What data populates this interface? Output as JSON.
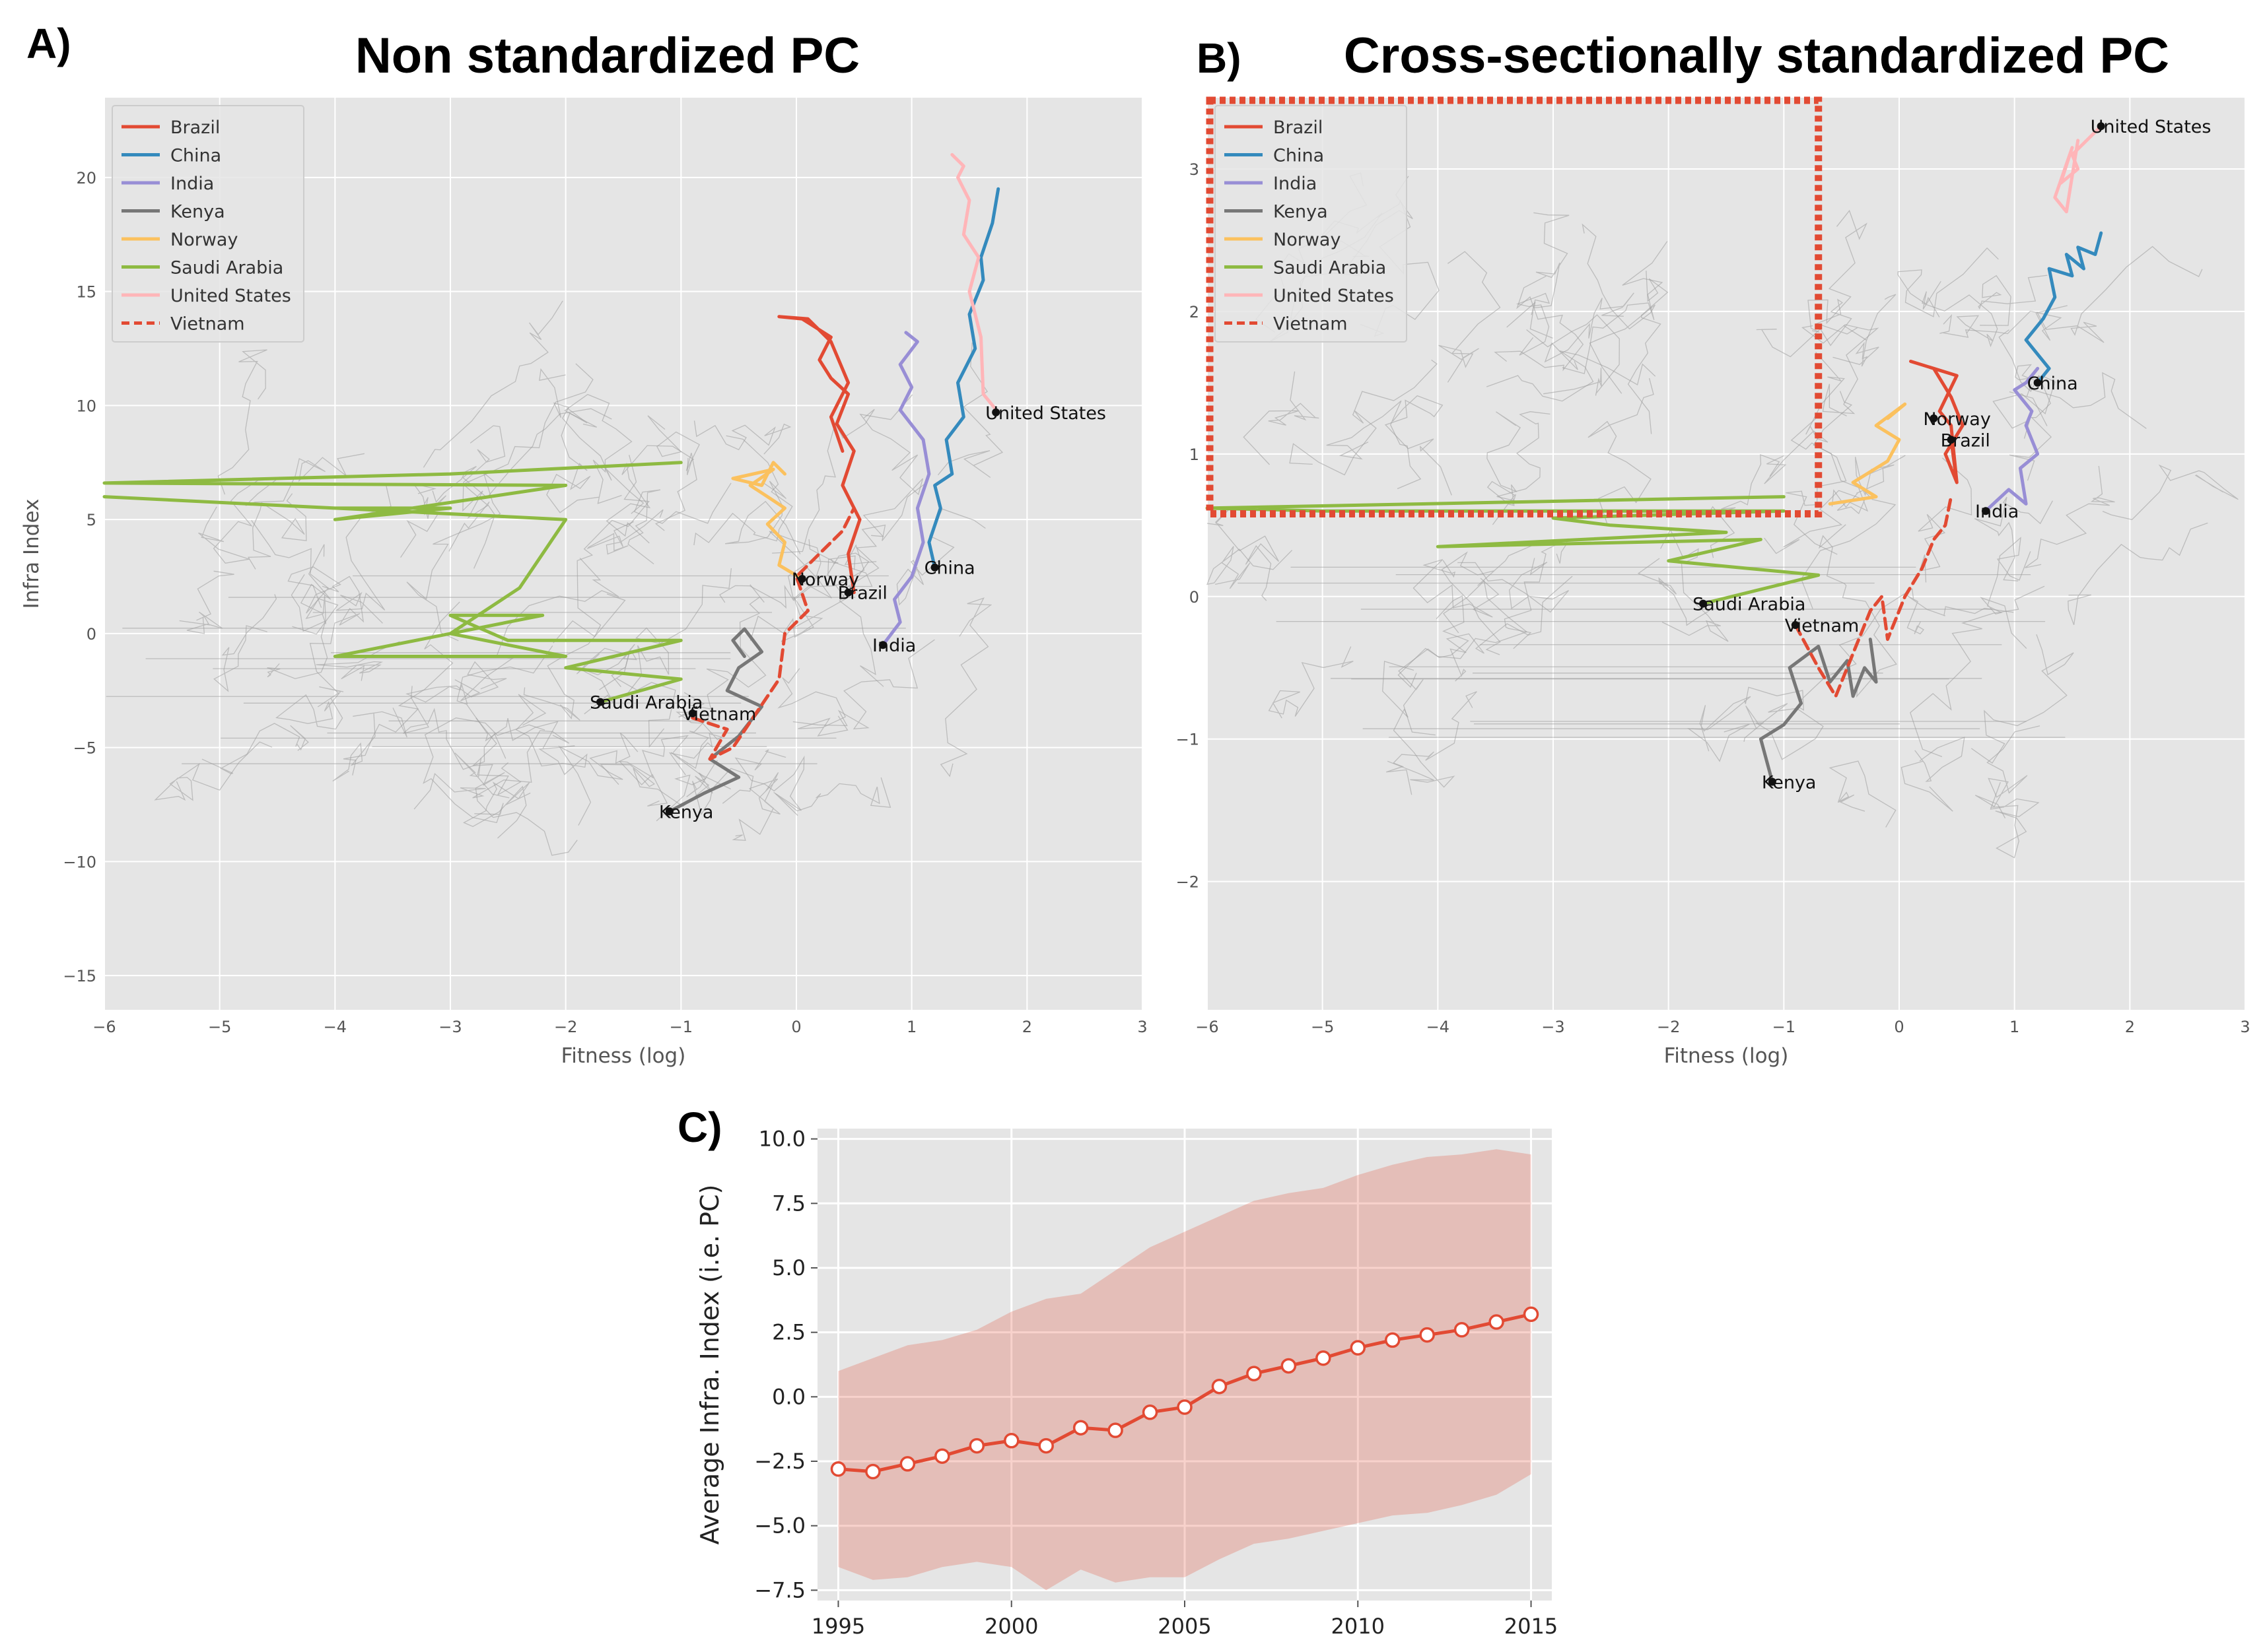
{
  "figure": {
    "panel_a": {
      "letter": "A)",
      "title": "Non standardized PC"
    },
    "panel_b": {
      "letter": "B)",
      "title": "Cross-sectionally standardized PC"
    },
    "panel_c": {
      "letter": "C)"
    }
  },
  "chart_data": [
    {
      "type": "line",
      "id": "A",
      "title": "Non standardized PC",
      "xlabel": "Fitness (log)",
      "ylabel": "Infra Index",
      "xlim": [
        -6,
        3
      ],
      "ylim": [
        -16.5,
        23.5
      ],
      "xticks": [
        -6,
        -5,
        -4,
        -3,
        -2,
        -1,
        0,
        1,
        2,
        3
      ],
      "yticks": [
        -15,
        -10,
        -5,
        0,
        5,
        10,
        15,
        20
      ],
      "xtick_labels": [
        "−6",
        "−5",
        "−4",
        "−3",
        "−2",
        "−1",
        "0",
        "1",
        "2",
        "3"
      ],
      "ytick_labels": [
        "−15",
        "−10",
        "−5",
        "0",
        "5",
        "10",
        "15",
        "20"
      ],
      "grid": true,
      "legend_position": "top-left",
      "background_trajectories": "many thin grey lines for all other countries",
      "series": [
        {
          "name": "Brazil",
          "color": "#e24a33",
          "dash": false,
          "x": [
            0.5,
            0.45,
            0.55,
            0.4,
            0.5,
            0.35,
            0.45,
            0.3,
            0.2,
            0.3,
            0.05,
            -0.15,
            0.1,
            0.3,
            0.45,
            0.3,
            0.4
          ],
          "y": [
            1.8,
            3.5,
            5.0,
            6.5,
            8.0,
            9.2,
            10.5,
            11.2,
            12.0,
            13.0,
            13.8,
            13.9,
            13.8,
            12.8,
            11.0,
            9.5,
            8.0
          ]
        },
        {
          "name": "China",
          "color": "#348abd",
          "dash": false,
          "x": [
            1.2,
            1.15,
            1.25,
            1.2,
            1.35,
            1.3,
            1.45,
            1.4,
            1.55,
            1.5,
            1.62,
            1.6,
            1.7,
            1.75
          ],
          "y": [
            2.9,
            4.0,
            5.5,
            6.5,
            7.0,
            8.5,
            9.5,
            11.0,
            12.5,
            14.0,
            15.5,
            16.5,
            18.0,
            19.5
          ]
        },
        {
          "name": "India",
          "color": "#988ed5",
          "dash": false,
          "x": [
            0.75,
            0.9,
            0.85,
            1.0,
            1.1,
            1.05,
            1.15,
            1.1,
            0.9,
            1.0,
            0.9,
            1.05,
            0.95
          ],
          "y": [
            -0.5,
            0.5,
            1.5,
            2.5,
            4.0,
            5.5,
            7.0,
            8.5,
            9.8,
            10.8,
            11.8,
            12.8,
            13.2
          ]
        },
        {
          "name": "Kenya",
          "color": "#777777",
          "dash": false,
          "x": [
            -1.1,
            -0.8,
            -0.5,
            -0.75,
            -0.5,
            -0.3,
            -0.6,
            -0.5,
            -0.3,
            -0.45,
            -0.55,
            -0.45
          ],
          "y": [
            -7.8,
            -7.0,
            -6.3,
            -5.5,
            -4.5,
            -3.2,
            -2.5,
            -1.5,
            -0.8,
            0.2,
            -0.3,
            -1.0
          ]
        },
        {
          "name": "Norway",
          "color": "#fbc15e",
          "dash": false,
          "x": [
            0.05,
            -0.15,
            -0.1,
            -0.25,
            -0.1,
            -0.25,
            -0.4,
            -0.2,
            -0.55,
            -0.3,
            -0.2,
            -0.1
          ],
          "y": [
            2.4,
            3.0,
            4.0,
            4.8,
            5.5,
            6.0,
            6.5,
            7.2,
            6.8,
            6.5,
            7.5,
            7.0
          ]
        },
        {
          "name": "Saudi Arabia",
          "color": "#8eba42",
          "dash": false,
          "x": [
            -1.7,
            -1.0,
            -2.0,
            -1.0,
            -2.5,
            -3.0,
            -2.2,
            -4.0,
            -2.0,
            -3.0,
            -2.4,
            -2.0,
            -6.0,
            -4.0,
            -3.0,
            -4.0,
            -2.0,
            -6.0,
            -3.0,
            -1.0
          ],
          "y": [
            -3.0,
            -2.0,
            -1.5,
            -0.3,
            -0.3,
            0.8,
            0.8,
            -1.0,
            -1.0,
            0.0,
            2.0,
            5.0,
            6.0,
            5.5,
            5.5,
            5.0,
            6.5,
            6.6,
            7.0,
            7.5
          ]
        },
        {
          "name": "United States",
          "color": "#ffb5b8",
          "dash": false,
          "x": [
            1.75,
            1.62,
            1.6,
            1.5,
            1.58,
            1.45,
            1.5,
            1.4,
            1.45,
            1.35
          ],
          "y": [
            9.7,
            10.5,
            13.0,
            15.0,
            16.5,
            17.5,
            19.0,
            20.0,
            20.5,
            21.0
          ]
        },
        {
          "name": "Vietnam",
          "color": "#e24a33",
          "dash": true,
          "x": [
            -0.9,
            -0.6,
            -0.75,
            -0.55,
            -0.35,
            -0.15,
            -0.1,
            0.1,
            0.0,
            0.2,
            0.4,
            0.5
          ],
          "y": [
            -3.7,
            -4.2,
            -5.5,
            -5.0,
            -3.5,
            -2.0,
            0.0,
            1.0,
            2.5,
            3.5,
            4.5,
            5.5
          ]
        }
      ],
      "annotations": [
        {
          "label": "United States",
          "x": 1.73,
          "y": 9.7
        },
        {
          "label": "China",
          "x": 1.2,
          "y": 2.9
        },
        {
          "label": "Norway",
          "x": 0.05,
          "y": 2.4
        },
        {
          "label": "Brazil",
          "x": 0.45,
          "y": 1.8
        },
        {
          "label": "India",
          "x": 0.75,
          "y": -0.5
        },
        {
          "label": "Saudi Arabia",
          "x": -1.7,
          "y": -3.0
        },
        {
          "label": "Vietnam",
          "x": -0.9,
          "y": -3.5
        },
        {
          "label": "Kenya",
          "x": -1.1,
          "y": -7.8
        }
      ]
    },
    {
      "type": "line",
      "id": "B",
      "title": "Cross-sectionally standardized PC",
      "xlabel": "Fitness (log)",
      "ylabel": "",
      "xlim": [
        -6,
        3
      ],
      "ylim": [
        -2.9,
        3.5
      ],
      "xticks": [
        -6,
        -5,
        -4,
        -3,
        -2,
        -1,
        0,
        1,
        2,
        3
      ],
      "yticks": [
        -2,
        -1,
        0,
        1,
        2,
        3
      ],
      "xtick_labels": [
        "−6",
        "−5",
        "−4",
        "−3",
        "−2",
        "−1",
        "0",
        "1",
        "2",
        "3"
      ],
      "ytick_labels": [
        "−2",
        "−1",
        "0",
        "1",
        "2",
        "3"
      ],
      "grid": true,
      "legend_position": "top-left",
      "highlight_box": {
        "x": [
          -6,
          -0.7
        ],
        "y": [
          0.58,
          3.5
        ],
        "color": "#e24a33",
        "style": "dotted"
      },
      "series": [
        {
          "name": "Brazil",
          "color": "#e24a33",
          "dash": false,
          "x": [
            0.45,
            0.5,
            0.4,
            0.55,
            0.45,
            0.3,
            0.1,
            0.3,
            0.5,
            0.35,
            0.45,
            0.5
          ],
          "y": [
            1.1,
            0.8,
            1.0,
            1.2,
            1.4,
            1.6,
            1.65,
            1.6,
            1.55,
            1.3,
            1.2,
            0.8
          ]
        },
        {
          "name": "China",
          "color": "#348abd",
          "dash": false,
          "x": [
            1.2,
            1.3,
            1.1,
            1.25,
            1.35,
            1.3,
            1.5,
            1.45,
            1.6,
            1.55,
            1.7,
            1.75
          ],
          "y": [
            1.5,
            1.6,
            1.8,
            1.95,
            2.1,
            2.3,
            2.25,
            2.4,
            2.3,
            2.45,
            2.4,
            2.55
          ]
        },
        {
          "name": "India",
          "color": "#988ed5",
          "dash": false,
          "x": [
            0.75,
            0.95,
            1.1,
            1.05,
            1.2,
            1.1,
            1.15,
            1.0,
            1.1,
            1.2
          ],
          "y": [
            0.6,
            0.75,
            0.65,
            0.9,
            1.0,
            1.2,
            1.3,
            1.45,
            1.5,
            1.6
          ]
        },
        {
          "name": "Kenya",
          "color": "#777777",
          "dash": false,
          "x": [
            -1.1,
            -1.2,
            -1.0,
            -0.85,
            -0.95,
            -0.7,
            -0.6,
            -0.45,
            -0.4,
            -0.3,
            -0.2,
            -0.25
          ],
          "y": [
            -1.3,
            -1.0,
            -0.9,
            -0.75,
            -0.5,
            -0.35,
            -0.6,
            -0.45,
            -0.7,
            -0.5,
            -0.6,
            -0.3
          ]
        },
        {
          "name": "Norway",
          "color": "#fbc15e",
          "dash": false,
          "x": [
            -0.1,
            0.05,
            -0.2,
            0.0,
            -0.1,
            -0.4,
            -0.2,
            -0.6
          ],
          "y": [
            1.25,
            1.35,
            1.2,
            1.1,
            0.95,
            0.8,
            0.7,
            0.65
          ]
        },
        {
          "name": "Saudi Arabia",
          "color": "#8eba42",
          "dash": false,
          "x": [
            -1.7,
            -0.7,
            -2.0,
            -1.2,
            -4.0,
            -1.5,
            -2.5,
            -3.0,
            -1.0,
            -5.0,
            -6.0,
            -1.0
          ],
          "y": [
            -0.05,
            0.15,
            0.25,
            0.4,
            0.35,
            0.45,
            0.5,
            0.55,
            0.6,
            0.6,
            0.62,
            0.7
          ]
        },
        {
          "name": "United States",
          "color": "#ffb5b8",
          "dash": false,
          "x": [
            1.75,
            1.5,
            1.55,
            1.4,
            1.5,
            1.35,
            1.45,
            1.55
          ],
          "y": [
            3.3,
            3.1,
            3.0,
            2.9,
            3.15,
            2.8,
            2.7,
            3.2
          ]
        },
        {
          "name": "Vietnam",
          "color": "#e24a33",
          "dash": true,
          "x": [
            -0.9,
            -0.7,
            -0.55,
            -0.4,
            -0.25,
            -0.15,
            -0.1,
            0.05,
            0.2,
            0.3,
            0.4,
            0.45
          ],
          "y": [
            -0.2,
            -0.5,
            -0.7,
            -0.4,
            -0.1,
            0.0,
            -0.3,
            0.0,
            0.2,
            0.4,
            0.5,
            0.7
          ]
        }
      ],
      "annotations": [
        {
          "label": "United States",
          "x": 1.75,
          "y": 3.3
        },
        {
          "label": "China",
          "x": 1.2,
          "y": 1.5
        },
        {
          "label": "Norway",
          "x": 0.3,
          "y": 1.25
        },
        {
          "label": "Brazil",
          "x": 0.45,
          "y": 1.1
        },
        {
          "label": "India",
          "x": 0.75,
          "y": 0.6
        },
        {
          "label": "Saudi Arabia",
          "x": -1.7,
          "y": -0.05
        },
        {
          "label": "Vietnam",
          "x": -0.9,
          "y": -0.2
        },
        {
          "label": "Kenya",
          "x": -1.1,
          "y": -1.3
        }
      ]
    },
    {
      "type": "line",
      "id": "C",
      "title": "",
      "xlabel": "",
      "ylabel": "Average Infra. Index (i.e. PC)",
      "xlim": [
        1994.4,
        2015.6
      ],
      "ylim": [
        -7.9,
        10.4
      ],
      "xticks": [
        1995,
        2000,
        2005,
        2010,
        2015
      ],
      "yticks": [
        -7.5,
        -5.0,
        -2.5,
        0.0,
        2.5,
        5.0,
        7.5,
        10.0
      ],
      "xtick_labels": [
        "1995",
        "2000",
        "2005",
        "2010",
        "2015"
      ],
      "ytick_labels": [
        "−7.5",
        "−5.0",
        "−2.5",
        "0.0",
        "2.5",
        "5.0",
        "7.5",
        "10.0"
      ],
      "grid": true,
      "color": "#e24a33",
      "x": [
        1995,
        1996,
        1997,
        1998,
        1999,
        2000,
        2001,
        2002,
        2003,
        2004,
        2005,
        2006,
        2007,
        2008,
        2009,
        2010,
        2011,
        2012,
        2013,
        2014,
        2015
      ],
      "values": [
        -2.8,
        -2.9,
        -2.6,
        -2.3,
        -1.9,
        -1.7,
        -1.9,
        -1.2,
        -1.3,
        -0.6,
        -0.4,
        0.4,
        0.9,
        1.2,
        1.5,
        1.9,
        2.2,
        2.4,
        2.6,
        2.9,
        3.2
      ],
      "band_upper": [
        1.0,
        1.5,
        2.0,
        2.2,
        2.6,
        3.3,
        3.8,
        4.0,
        4.9,
        5.8,
        6.4,
        7.0,
        7.6,
        7.9,
        8.1,
        8.6,
        9.0,
        9.3,
        9.4,
        9.6,
        9.4
      ],
      "band_lower": [
        -6.6,
        -7.1,
        -7.0,
        -6.6,
        -6.4,
        -6.6,
        -7.5,
        -6.7,
        -7.2,
        -7.0,
        -7.0,
        -6.3,
        -5.7,
        -5.5,
        -5.2,
        -4.9,
        -4.6,
        -4.5,
        -4.2,
        -3.8,
        -3.0
      ]
    }
  ]
}
